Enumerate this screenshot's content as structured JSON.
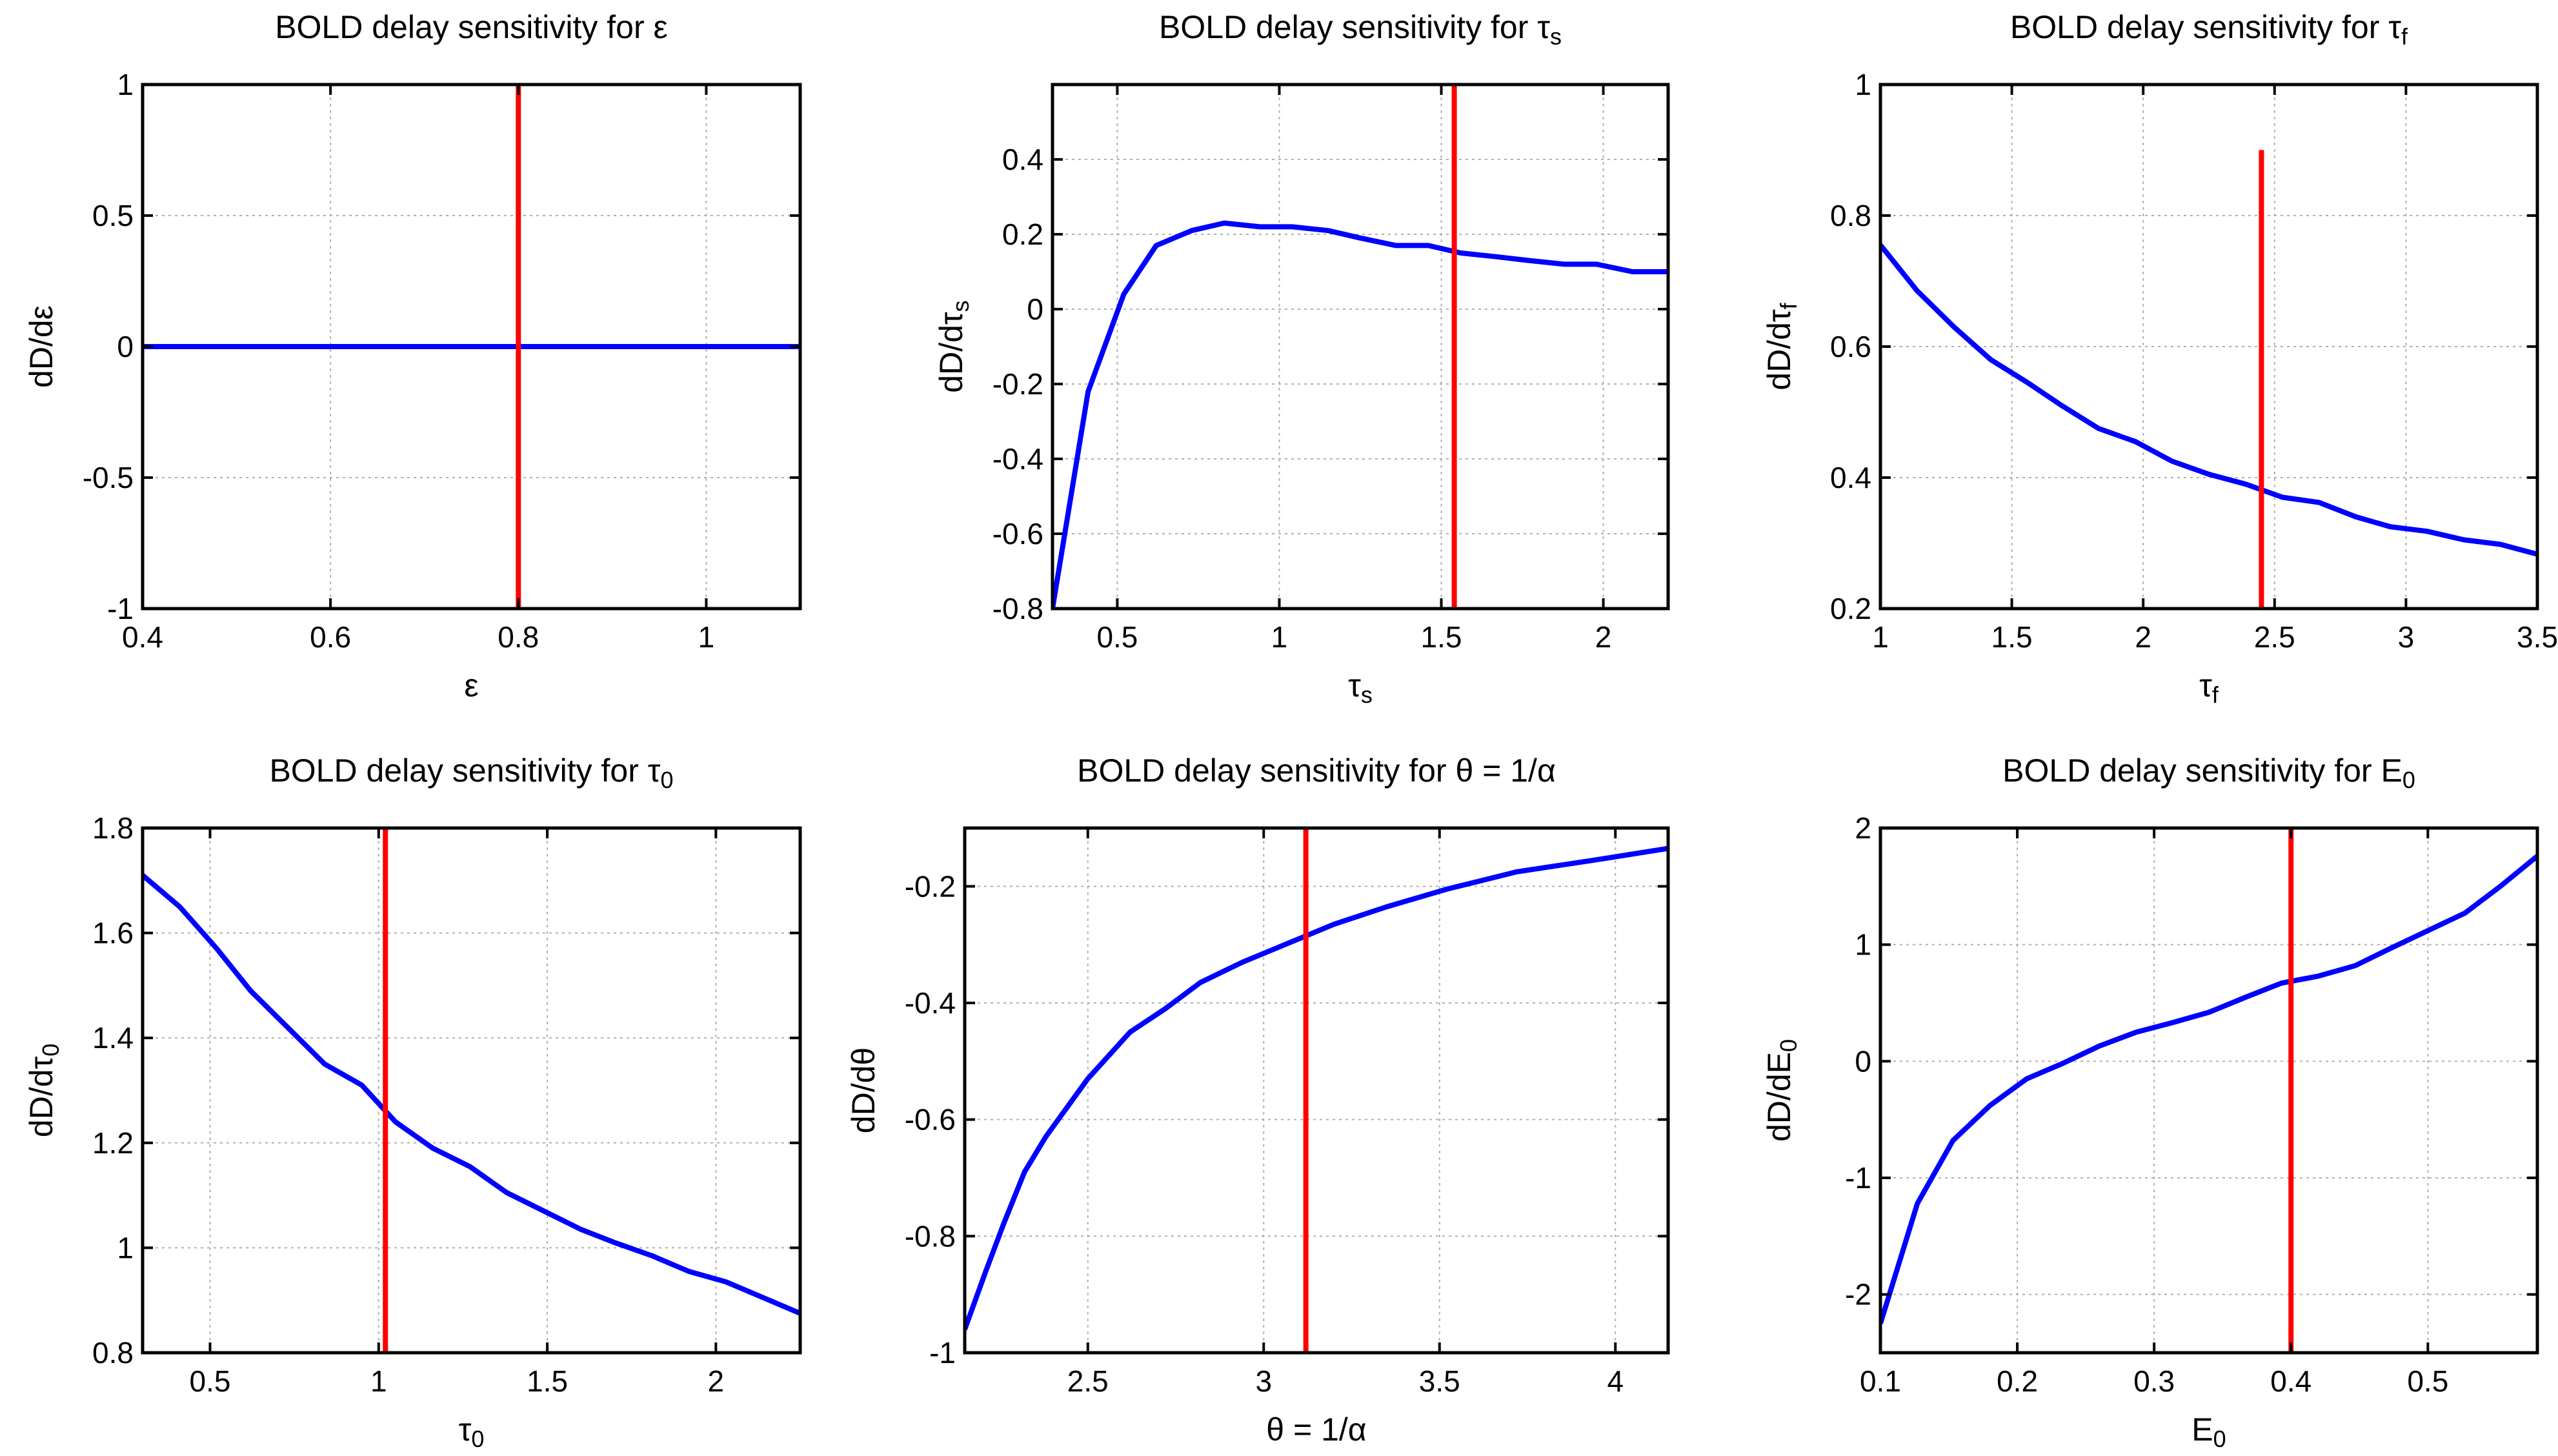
{
  "figure": {
    "background": "#ffffff"
  },
  "colors": {
    "curve": "#0000ff",
    "marker": "#ff0000",
    "grid": "#b0b0b0",
    "axes": "#000000"
  },
  "chart_data": [
    {
      "type": "line",
      "title": {
        "text": "BOLD delay sensitivity for ε",
        "sub": ""
      },
      "xlabel": {
        "text": "ε",
        "sub": ""
      },
      "ylabel": {
        "text": "dD/dε",
        "sub": ""
      },
      "xlim": [
        0.4,
        1.1
      ],
      "ylim": [
        -1,
        1
      ],
      "xticks": [
        0.4,
        0.6,
        0.8,
        1
      ],
      "xtick_labels": [
        "0.4",
        "0.6",
        "0.8",
        "1"
      ],
      "yticks": [
        -1,
        -0.5,
        0,
        0.5,
        1
      ],
      "ytick_labels": [
        "-1",
        "-0.5",
        "0",
        "0.5",
        "1"
      ],
      "grid": true,
      "series": [
        {
          "x": [
            0.4,
            1.1
          ],
          "y": [
            0,
            0
          ]
        }
      ],
      "marker_line": {
        "x": 0.8,
        "y": [
          -1,
          1
        ]
      }
    },
    {
      "type": "line",
      "title": {
        "text": "BOLD delay sensitivity for τ",
        "sub": "s"
      },
      "xlabel": {
        "text": "τ",
        "sub": "s"
      },
      "ylabel": {
        "text": "dD/dτ",
        "sub": "s"
      },
      "xlim": [
        0.3,
        2.2
      ],
      "ylim": [
        -0.8,
        0.6
      ],
      "xticks": [
        0.5,
        1,
        1.5,
        2
      ],
      "xtick_labels": [
        "0.5",
        "1",
        "1.5",
        "2"
      ],
      "yticks": [
        -0.8,
        -0.6,
        -0.4,
        -0.2,
        0,
        0.2,
        0.4
      ],
      "ytick_labels": [
        "-0.8",
        "-0.6",
        "-0.4",
        "-0.2",
        "0",
        "0.2",
        "0.4"
      ],
      "grid": true,
      "series": [
        {
          "x": [
            0.3,
            0.41,
            0.52,
            0.62,
            0.73,
            0.83,
            0.94,
            1.04,
            1.15,
            1.25,
            1.36,
            1.46,
            1.56,
            1.67,
            1.77,
            1.88,
            1.98,
            2.09,
            2.2
          ],
          "y": [
            -0.8,
            -0.22,
            0.04,
            0.17,
            0.21,
            0.23,
            0.22,
            0.22,
            0.21,
            0.19,
            0.17,
            0.17,
            0.15,
            0.14,
            0.13,
            0.12,
            0.12,
            0.1,
            0.1
          ]
        }
      ],
      "marker_line": {
        "x": 1.54,
        "y": [
          -0.8,
          0.6
        ]
      }
    },
    {
      "type": "line",
      "title": {
        "text": "BOLD delay sensitivity for τ",
        "sub": "f"
      },
      "xlabel": {
        "text": "τ",
        "sub": "f"
      },
      "ylabel": {
        "text": "dD/dτ",
        "sub": "f"
      },
      "xlim": [
        1,
        3.5
      ],
      "ylim": [
        0.2,
        1
      ],
      "xticks": [
        1,
        1.5,
        2,
        2.5,
        3,
        3.5
      ],
      "xtick_labels": [
        "1",
        "1.5",
        "2",
        "2.5",
        "3",
        "3.5"
      ],
      "yticks": [
        0.2,
        0.4,
        0.6,
        0.8,
        1
      ],
      "ytick_labels": [
        "0.2",
        "0.4",
        "0.6",
        "0.8",
        "1"
      ],
      "grid": true,
      "series": [
        {
          "x": [
            1,
            1.14,
            1.28,
            1.42,
            1.56,
            1.69,
            1.83,
            1.97,
            2.11,
            2.25,
            2.39,
            2.53,
            2.67,
            2.81,
            2.94,
            3.08,
            3.22,
            3.36,
            3.5
          ],
          "y": [
            0.755,
            0.685,
            0.63,
            0.58,
            0.545,
            0.51,
            0.475,
            0.455,
            0.425,
            0.405,
            0.39,
            0.37,
            0.362,
            0.34,
            0.325,
            0.318,
            0.305,
            0.298,
            0.283
          ]
        }
      ],
      "marker_line": {
        "x": 2.45,
        "y": [
          0.2,
          0.9
        ]
      }
    },
    {
      "type": "line",
      "title": {
        "text": "BOLD delay sensitivity for τ",
        "sub": "0"
      },
      "xlabel": {
        "text": "τ",
        "sub": "0"
      },
      "ylabel": {
        "text": "dD/dτ",
        "sub": "0"
      },
      "xlim": [
        0.3,
        2.25
      ],
      "ylim": [
        0.8,
        1.8
      ],
      "xticks": [
        0.5,
        1,
        1.5,
        2
      ],
      "xtick_labels": [
        "0.5",
        "1",
        "1.5",
        "2"
      ],
      "yticks": [
        0.8,
        1,
        1.2,
        1.4,
        1.6,
        1.8
      ],
      "ytick_labels": [
        "0.8",
        "1",
        "1.2",
        "1.4",
        "1.6",
        "1.8"
      ],
      "grid": true,
      "series": [
        {
          "x": [
            0.3,
            0.41,
            0.52,
            0.62,
            0.73,
            0.84,
            0.95,
            1.05,
            1.16,
            1.27,
            1.38,
            1.49,
            1.6,
            1.7,
            1.81,
            1.92,
            2.03,
            2.14,
            2.25
          ],
          "y": [
            1.71,
            1.65,
            1.57,
            1.49,
            1.42,
            1.35,
            1.31,
            1.24,
            1.19,
            1.155,
            1.105,
            1.07,
            1.035,
            1.01,
            0.985,
            0.955,
            0.935,
            0.905,
            0.875
          ]
        }
      ],
      "marker_line": {
        "x": 1.02,
        "y": [
          0.8,
          1.8
        ]
      }
    },
    {
      "type": "line",
      "title": {
        "text": "BOLD delay sensitivity for θ = 1/α",
        "sub": ""
      },
      "xlabel": {
        "text": "θ = 1/α",
        "sub": ""
      },
      "ylabel": {
        "text": "dD/dθ",
        "sub": ""
      },
      "xlim": [
        2.15,
        4.15
      ],
      "ylim": [
        -1,
        -0.1
      ],
      "xticks": [
        2.5,
        3,
        3.5,
        4
      ],
      "xtick_labels": [
        "2.5",
        "3",
        "3.5",
        "4"
      ],
      "yticks": [
        -1,
        -0.8,
        -0.6,
        -0.4,
        -0.2
      ],
      "ytick_labels": [
        "-1",
        "-0.8",
        "-0.6",
        "-0.4",
        "-0.2"
      ],
      "grid": true,
      "series": [
        {
          "x": [
            2.15,
            2.21,
            2.26,
            2.32,
            2.38,
            2.44,
            2.5,
            2.56,
            2.62,
            2.72,
            2.82,
            2.94,
            3.06,
            3.2,
            3.35,
            3.52,
            3.72,
            3.94,
            4.15
          ],
          "y": [
            -0.96,
            -0.86,
            -0.78,
            -0.69,
            -0.63,
            -0.58,
            -0.53,
            -0.49,
            -0.45,
            -0.41,
            -0.365,
            -0.33,
            -0.3,
            -0.265,
            -0.235,
            -0.205,
            -0.175,
            -0.155,
            -0.135
          ]
        }
      ],
      "marker_line": {
        "x": 3.12,
        "y": [
          -1,
          -0.1
        ]
      }
    },
    {
      "type": "line",
      "title": {
        "text": "BOLD delay sensitivity for E",
        "sub": "0"
      },
      "xlabel": {
        "text": "E",
        "sub": "0"
      },
      "ylabel": {
        "text": "dD/dE",
        "sub": "0"
      },
      "xlim": [
        0.1,
        0.58
      ],
      "ylim": [
        -2.5,
        2
      ],
      "xticks": [
        0.1,
        0.2,
        0.3,
        0.4,
        0.5
      ],
      "xtick_labels": [
        "0.1",
        "0.2",
        "0.3",
        "0.4",
        "0.5"
      ],
      "yticks": [
        -2,
        -1,
        0,
        1,
        2
      ],
      "ytick_labels": [
        "-2",
        "-1",
        "0",
        "1",
        "2"
      ],
      "grid": true,
      "series": [
        {
          "x": [
            0.1,
            0.127,
            0.153,
            0.18,
            0.207,
            0.233,
            0.26,
            0.287,
            0.313,
            0.34,
            0.367,
            0.393,
            0.42,
            0.447,
            0.473,
            0.5,
            0.527,
            0.553,
            0.58
          ],
          "y": [
            -2.25,
            -1.22,
            -0.68,
            -0.38,
            -0.15,
            -0.02,
            0.13,
            0.25,
            0.33,
            0.42,
            0.55,
            0.67,
            0.73,
            0.82,
            0.97,
            1.12,
            1.27,
            1.5,
            1.76
          ]
        }
      ],
      "marker_line": {
        "x": 0.4,
        "y": [
          -2.5,
          2
        ]
      }
    }
  ]
}
